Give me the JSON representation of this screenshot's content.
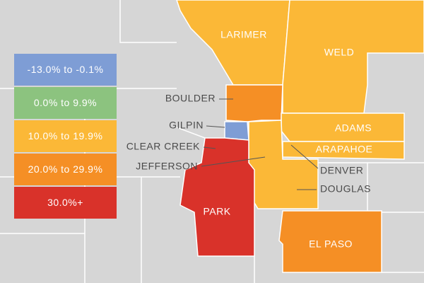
{
  "legend": [
    {
      "label": "-13.0% to -0.1%",
      "color": "#7e9dd5"
    },
    {
      "label": "0.0% to 9.9%",
      "color": "#8cc37f"
    },
    {
      "label": "10.0% to 19.9%",
      "color": "#fbb837"
    },
    {
      "label": "20.0% to 29.9%",
      "color": "#f58f25"
    },
    {
      "label": "30.0%+",
      "color": "#d9322a"
    }
  ],
  "counties": [
    "LARIMER",
    "WELD",
    "BOULDER",
    "GILPIN",
    "ADAMS",
    "CLEAR CREEK",
    "ARAPAHOE",
    "JEFFERSON",
    "DENVER",
    "DOUGLAS",
    "PARK",
    "EL PASO"
  ]
}
